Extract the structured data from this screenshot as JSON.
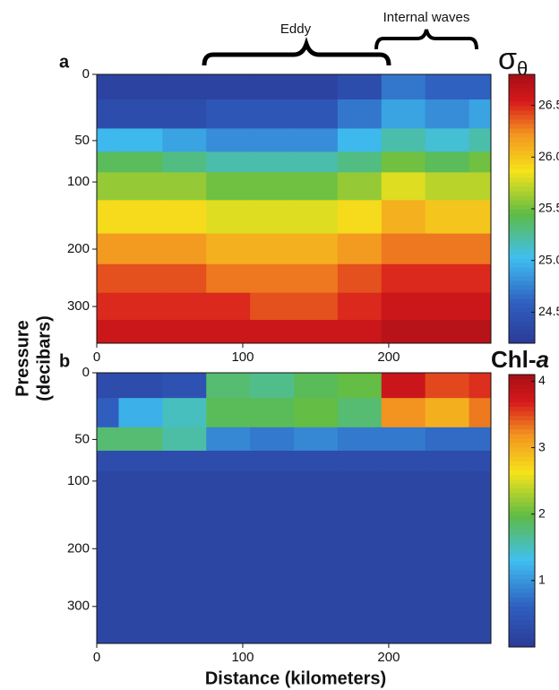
{
  "chart_data": [
    {
      "type": "heatmap",
      "panel": "a",
      "annotations": [
        "Eddy",
        "Internal waves"
      ],
      "ylabel": [
        "Pressure",
        "(decibars)"
      ],
      "colorbar_title": {
        "base": "σ",
        "subscript": "θ"
      },
      "x": [
        0,
        30,
        60,
        90,
        120,
        150,
        180,
        210,
        240,
        270
      ],
      "y": [
        0,
        25,
        50,
        75,
        100,
        150,
        200,
        250,
        300,
        350
      ],
      "z": [
        [
          24.3,
          24.3,
          24.3,
          24.3,
          24.3,
          24.3,
          24.4,
          24.7,
          24.6,
          24.6
        ],
        [
          24.4,
          24.4,
          24.4,
          24.5,
          24.5,
          24.5,
          24.7,
          24.9,
          24.8,
          24.9
        ],
        [
          25.0,
          25.0,
          24.9,
          24.8,
          24.8,
          24.8,
          25.0,
          25.2,
          25.1,
          25.2
        ],
        [
          25.4,
          25.4,
          25.3,
          25.2,
          25.2,
          25.2,
          25.3,
          25.5,
          25.4,
          25.5
        ],
        [
          25.6,
          25.6,
          25.6,
          25.5,
          25.5,
          25.5,
          25.6,
          25.8,
          25.7,
          25.7
        ],
        [
          25.9,
          25.9,
          25.9,
          25.8,
          25.8,
          25.8,
          25.9,
          26.1,
          26.0,
          26.0
        ],
        [
          26.2,
          26.2,
          26.2,
          26.1,
          26.1,
          26.1,
          26.2,
          26.3,
          26.3,
          26.3
        ],
        [
          26.4,
          26.4,
          26.4,
          26.3,
          26.3,
          26.3,
          26.4,
          26.5,
          26.5,
          26.5
        ],
        [
          26.5,
          26.5,
          26.5,
          26.5,
          26.4,
          26.4,
          26.5,
          26.6,
          26.6,
          26.6
        ],
        [
          26.6,
          26.6,
          26.6,
          26.6,
          26.6,
          26.6,
          26.6,
          26.7,
          26.7,
          26.7
        ]
      ],
      "xlim": [
        0,
        270
      ],
      "xticks": [
        0,
        100,
        200
      ],
      "ylim": [
        0,
        370
      ],
      "yticks": [
        0,
        50,
        100,
        200,
        300
      ],
      "yscale": "power",
      "yexponent": 0.7,
      "yinverted": true,
      "clim": [
        24.2,
        26.8
      ],
      "cticks": [
        24.5,
        {
          "value": 25.0,
          "label": "25.0"
        },
        25.5,
        {
          "value": 26.0,
          "label": "26.0"
        },
        26.5
      ]
    },
    {
      "type": "heatmap",
      "panel": "b",
      "xlabel": "Distance (kilometers)",
      "colorbar_title": {
        "base": "Chl-",
        "italic": "a"
      },
      "x": [
        0,
        30,
        60,
        90,
        120,
        150,
        180,
        210,
        240,
        270
      ],
      "y": [
        0,
        25,
        50,
        75,
        100,
        150,
        200,
        250,
        300,
        350
      ],
      "z": [
        [
          0.3,
          0.3,
          0.4,
          1.8,
          1.7,
          1.9,
          2.0,
          3.8,
          3.5,
          3.6
        ],
        [
          0.6,
          1.2,
          1.5,
          1.9,
          1.9,
          2.0,
          1.8,
          3.2,
          3.0,
          3.3
        ],
        [
          1.8,
          1.8,
          1.6,
          0.9,
          0.8,
          0.9,
          0.8,
          0.8,
          0.7,
          0.7
        ],
        [
          0.3,
          0.3,
          0.3,
          0.3,
          0.3,
          0.3,
          0.3,
          0.3,
          0.3,
          0.3
        ],
        [
          0.2,
          0.2,
          0.2,
          0.2,
          0.2,
          0.2,
          0.2,
          0.2,
          0.2,
          0.2
        ],
        [
          0.2,
          0.2,
          0.2,
          0.2,
          0.2,
          0.2,
          0.2,
          0.2,
          0.2,
          0.2
        ],
        [
          0.2,
          0.2,
          0.2,
          0.2,
          0.2,
          0.2,
          0.2,
          0.2,
          0.2,
          0.2
        ],
        [
          0.2,
          0.2,
          0.2,
          0.2,
          0.2,
          0.2,
          0.2,
          0.2,
          0.2,
          0.2
        ],
        [
          0.2,
          0.2,
          0.2,
          0.2,
          0.2,
          0.2,
          0.2,
          0.2,
          0.2,
          0.2
        ],
        [
          0.2,
          0.2,
          0.2,
          0.2,
          0.2,
          0.2,
          0.2,
          0.2,
          0.2,
          0.2
        ]
      ],
      "xlim": [
        0,
        270
      ],
      "xticks": [
        0,
        100,
        200
      ],
      "ylim": [
        0,
        370
      ],
      "yticks": [
        0,
        50,
        100,
        200,
        300
      ],
      "yscale": "power",
      "yexponent": 0.7,
      "yinverted": true,
      "clim": [
        0,
        4.1
      ],
      "cticks": [
        1,
        2,
        3,
        4
      ]
    }
  ]
}
